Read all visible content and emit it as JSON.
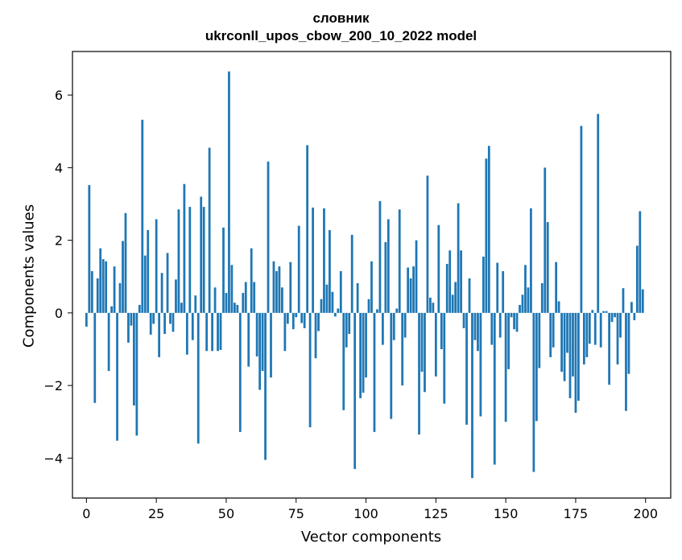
{
  "chart_data": {
    "type": "bar",
    "title": [
      "словник",
      "ukrconll_upos_cbow_200_10_2022 model"
    ],
    "xlabel": "Vector components",
    "ylabel": "Components values",
    "xlim": [
      -5,
      209
    ],
    "ylim": [
      -5.1,
      7.2
    ],
    "xticks": [
      0,
      25,
      50,
      75,
      100,
      125,
      150,
      175,
      200
    ],
    "yticks": [
      -4,
      -2,
      0,
      2,
      4,
      6
    ],
    "ytick_labels": [
      "−4",
      "−2",
      "0",
      "2",
      "4",
      "6"
    ],
    "grid": false,
    "bar_color": "#1f77b4",
    "x": [
      0,
      1,
      2,
      3,
      4,
      5,
      6,
      7,
      8,
      9,
      10,
      11,
      12,
      13,
      14,
      15,
      16,
      17,
      18,
      19,
      20,
      21,
      22,
      23,
      24,
      25,
      26,
      27,
      28,
      29,
      30,
      31,
      32,
      33,
      34,
      35,
      36,
      37,
      38,
      39,
      40,
      41,
      42,
      43,
      44,
      45,
      46,
      47,
      48,
      49,
      50,
      51,
      52,
      53,
      54,
      55,
      56,
      57,
      58,
      59,
      60,
      61,
      62,
      63,
      64,
      65,
      66,
      67,
      68,
      69,
      70,
      71,
      72,
      73,
      74,
      75,
      76,
      77,
      78,
      79,
      80,
      81,
      82,
      83,
      84,
      85,
      86,
      87,
      88,
      89,
      90,
      91,
      92,
      93,
      94,
      95,
      96,
      97,
      98,
      99,
      100,
      101,
      102,
      103,
      104,
      105,
      106,
      107,
      108,
      109,
      110,
      111,
      112,
      113,
      114,
      115,
      116,
      117,
      118,
      119,
      120,
      121,
      122,
      123,
      124,
      125,
      126,
      127,
      128,
      129,
      130,
      131,
      132,
      133,
      134,
      135,
      136,
      137,
      138,
      139,
      140,
      141,
      142,
      143,
      144,
      145,
      146,
      147,
      148,
      149,
      150,
      151,
      152,
      153,
      154,
      155,
      156,
      157,
      158,
      159,
      160,
      161,
      162,
      163,
      164,
      165,
      166,
      167,
      168,
      169,
      170,
      171,
      172,
      173,
      174,
      175,
      176,
      177,
      178,
      179,
      180,
      181,
      182,
      183,
      184,
      185,
      186,
      187,
      188,
      189,
      190,
      191,
      192,
      193,
      194,
      195,
      196,
      197,
      198,
      199
    ],
    "values": [
      -0.38,
      3.52,
      1.15,
      -2.48,
      0.95,
      1.78,
      1.48,
      1.42,
      -1.6,
      0.18,
      1.28,
      -3.52,
      0.82,
      1.98,
      2.75,
      -0.82,
      -0.35,
      -2.55,
      -3.38,
      0.22,
      5.32,
      1.58,
      2.28,
      -0.6,
      -0.3,
      2.58,
      -1.22,
      1.1,
      -0.58,
      1.65,
      -0.3,
      -0.52,
      0.92,
      2.85,
      0.28,
      3.55,
      -1.15,
      2.92,
      -0.75,
      0.48,
      -3.6,
      3.2,
      2.92,
      -1.05,
      4.55,
      -1.05,
      0.7,
      -1.05,
      -1.02,
      2.35,
      0.55,
      6.65,
      1.32,
      0.28,
      0.22,
      -3.28,
      0.55,
      0.85,
      -1.48,
      1.78,
      0.85,
      -1.2,
      -2.12,
      -1.6,
      -4.05,
      4.17,
      -1.78,
      1.42,
      1.15,
      1.28,
      0.7,
      -1.05,
      -0.3,
      1.4,
      -0.45,
      -0.12,
      2.4,
      -0.28,
      -0.42,
      4.62,
      -3.15,
      2.9,
      -1.25,
      -0.5,
      0.38,
      2.88,
      0.78,
      2.28,
      0.58,
      -0.1,
      0.12,
      1.15,
      -2.68,
      -0.95,
      -0.58,
      2.15,
      -4.3,
      0.82,
      -2.35,
      -2.2,
      -1.78,
      0.38,
      1.42,
      -3.28,
      0.1,
      3.08,
      -0.88,
      1.95,
      2.58,
      -2.92,
      -0.75,
      0.12,
      2.85,
      -2.0,
      -0.68,
      1.25,
      0.95,
      1.28,
      2.0,
      -3.35,
      -1.62,
      -2.18,
      3.78,
      0.42,
      0.28,
      -1.75,
      2.42,
      -1.0,
      -2.5,
      1.35,
      1.72,
      0.5,
      0.85,
      3.02,
      1.72,
      -0.42,
      -3.08,
      0.95,
      -4.55,
      -0.75,
      -1.05,
      -2.85,
      1.55,
      4.25,
      4.6,
      -0.88,
      -4.18,
      1.38,
      -0.68,
      1.15,
      -3.0,
      -1.55,
      -0.12,
      -0.45,
      -0.52,
      0.22,
      0.5,
      1.32,
      0.7,
      2.88,
      -4.38,
      -2.98,
      -1.52,
      0.82,
      4.0,
      2.5,
      -1.22,
      -0.95,
      1.4,
      0.32,
      -1.62,
      -1.88,
      -1.1,
      -2.35,
      -1.75,
      -2.75,
      -2.42,
      5.15,
      -1.42,
      -1.22,
      -0.85,
      0.08,
      -0.88,
      5.48,
      -0.95,
      0.05,
      0.05,
      -1.98,
      -0.25,
      -0.12,
      -1.42,
      -0.68,
      0.68,
      -2.7,
      -1.68,
      0.3,
      -0.2,
      1.85,
      2.8,
      0.65
    ]
  }
}
